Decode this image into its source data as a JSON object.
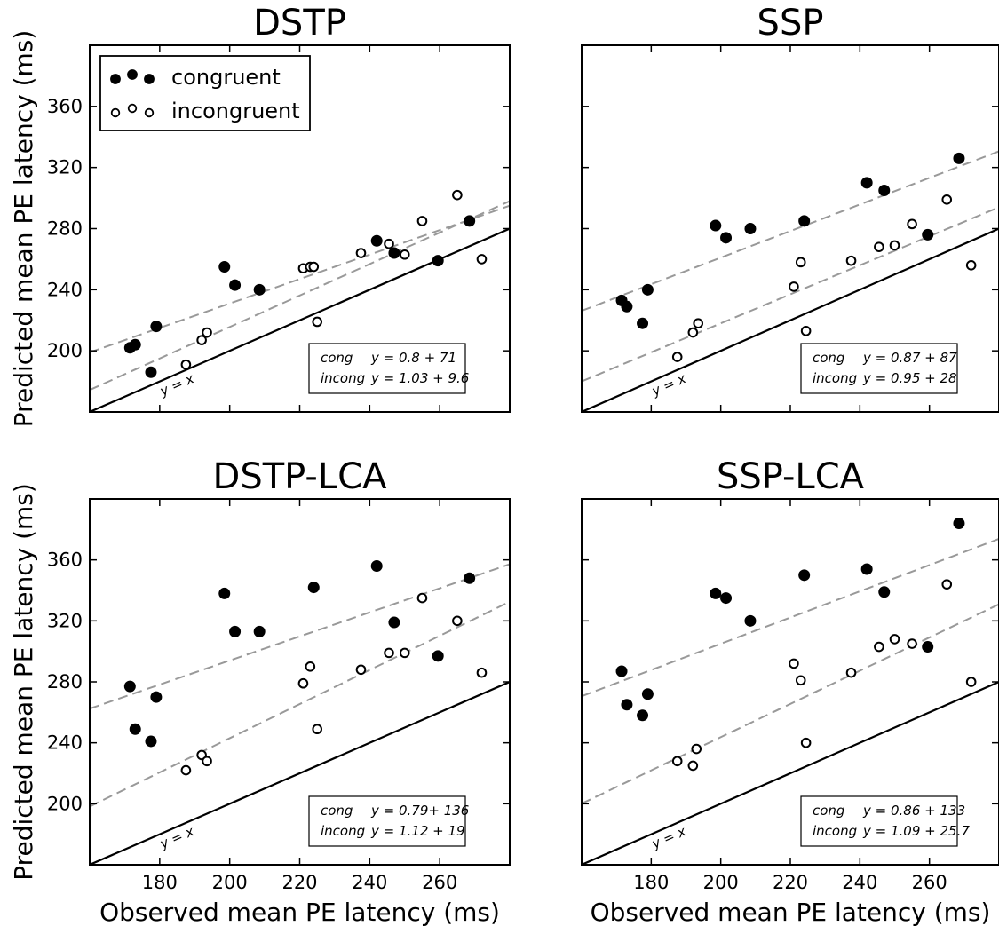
{
  "chart_data": [
    {
      "type": "scatter",
      "title": "DSTP",
      "xlabel": "",
      "ylabel": "Predicted mean PE latency (ms)",
      "xlim": [
        160,
        280
      ],
      "ylim": [
        160,
        400
      ],
      "xticks": [],
      "yticks": [
        200,
        240,
        280,
        320,
        360
      ],
      "identity_label": "y = x",
      "legend": {
        "placement": "top-left",
        "entries": [
          {
            "marker": "filled",
            "label": "congruent"
          },
          {
            "marker": "open",
            "label": "incongruent"
          }
        ]
      },
      "fits": [
        {
          "label": "cong",
          "equation": "y = 0.8 + 71",
          "slope": 0.8,
          "intercept": 71
        },
        {
          "label": "incong",
          "equation": "y = 1.03 + 9.6",
          "slope": 1.03,
          "intercept": 9.6
        }
      ],
      "series": [
        {
          "marker": "filled",
          "points": [
            [
              171.5,
              202
            ],
            [
              173,
              204
            ],
            [
              177.5,
              186
            ],
            [
              179,
              216
            ],
            [
              198.5,
              255
            ],
            [
              201.5,
              243
            ],
            [
              208.5,
              240
            ],
            [
              242,
              272
            ],
            [
              247,
              264
            ],
            [
              259.5,
              259
            ],
            [
              268.5,
              285
            ]
          ]
        },
        {
          "marker": "open",
          "points": [
            [
              187.5,
              191
            ],
            [
              192,
              207
            ],
            [
              193.5,
              212
            ],
            [
              221,
              254
            ],
            [
              223,
              255
            ],
            [
              224,
              255
            ],
            [
              225,
              219
            ],
            [
              237.5,
              264
            ],
            [
              245.5,
              270
            ],
            [
              250,
              263
            ],
            [
              255,
              285
            ],
            [
              265,
              302
            ],
            [
              272,
              260
            ]
          ]
        }
      ]
    },
    {
      "type": "scatter",
      "title": "SSP",
      "xlabel": "",
      "ylabel": "",
      "xlim": [
        160,
        280
      ],
      "ylim": [
        160,
        400
      ],
      "xticks": [],
      "yticks": [],
      "identity_label": "y = x",
      "fits": [
        {
          "label": "cong",
          "equation": "y = 0.87 + 87",
          "slope": 0.87,
          "intercept": 87
        },
        {
          "label": "incong",
          "equation": "y = 0.95 + 28",
          "slope": 0.95,
          "intercept": 28
        }
      ],
      "series": [
        {
          "marker": "filled",
          "points": [
            [
              171.5,
              233
            ],
            [
              173,
              229
            ],
            [
              177.5,
              218
            ],
            [
              179,
              240
            ],
            [
              198.5,
              282
            ],
            [
              201.5,
              274
            ],
            [
              208.5,
              280
            ],
            [
              224,
              285
            ],
            [
              242,
              310
            ],
            [
              247,
              305
            ],
            [
              259.5,
              276
            ],
            [
              268.5,
              326
            ]
          ]
        },
        {
          "marker": "open",
          "points": [
            [
              187.5,
              196
            ],
            [
              192,
              212
            ],
            [
              193.5,
              218
            ],
            [
              221,
              242
            ],
            [
              223,
              258
            ],
            [
              224.5,
              213
            ],
            [
              237.5,
              259
            ],
            [
              245.5,
              268
            ],
            [
              250,
              269
            ],
            [
              255,
              283
            ],
            [
              265,
              299
            ],
            [
              272,
              256
            ]
          ]
        }
      ]
    },
    {
      "type": "scatter",
      "title": "DSTP-LCA",
      "xlabel": "Observed mean PE latency (ms)",
      "ylabel": "Predicted mean PE latency (ms)",
      "xlim": [
        160,
        280
      ],
      "ylim": [
        160,
        400
      ],
      "xticks": [
        180,
        200,
        220,
        240,
        260
      ],
      "yticks": [
        200,
        240,
        280,
        320,
        360
      ],
      "identity_label": "y = x",
      "fits": [
        {
          "label": "cong",
          "equation": "y = 0.79+ 136",
          "slope": 0.79,
          "intercept": 136
        },
        {
          "label": "incong",
          "equation": "y = 1.12 + 19",
          "slope": 1.12,
          "intercept": 19
        }
      ],
      "series": [
        {
          "marker": "filled",
          "points": [
            [
              171.5,
              277
            ],
            [
              173,
              249
            ],
            [
              177.5,
              241
            ],
            [
              179,
              270
            ],
            [
              198.5,
              338
            ],
            [
              201.5,
              313
            ],
            [
              208.5,
              313
            ],
            [
              224,
              342
            ],
            [
              242,
              356
            ],
            [
              247,
              319
            ],
            [
              259.5,
              297
            ],
            [
              268.5,
              348
            ]
          ]
        },
        {
          "marker": "open",
          "points": [
            [
              187.5,
              222
            ],
            [
              192,
              232
            ],
            [
              193.5,
              228
            ],
            [
              221,
              279
            ],
            [
              223,
              290
            ],
            [
              225,
              249
            ],
            [
              237.5,
              288
            ],
            [
              245.5,
              299
            ],
            [
              250,
              299
            ],
            [
              255,
              335
            ],
            [
              265,
              320
            ],
            [
              272,
              286
            ]
          ]
        }
      ]
    },
    {
      "type": "scatter",
      "title": "SSP-LCA",
      "xlabel": "Observed mean PE latency (ms)",
      "ylabel": "",
      "xlim": [
        160,
        280
      ],
      "ylim": [
        160,
        400
      ],
      "xticks": [
        180,
        200,
        220,
        240,
        260
      ],
      "yticks": [],
      "identity_label": "y = x",
      "fits": [
        {
          "label": "cong",
          "equation": "y = 0.86 + 133",
          "slope": 0.86,
          "intercept": 133
        },
        {
          "label": "incong",
          "equation": "y = 1.09 + 25.7",
          "slope": 1.09,
          "intercept": 25.7
        }
      ],
      "series": [
        {
          "marker": "filled",
          "points": [
            [
              171.5,
              287
            ],
            [
              173,
              265
            ],
            [
              177.5,
              258
            ],
            [
              179,
              272
            ],
            [
              198.5,
              338
            ],
            [
              201.5,
              335
            ],
            [
              208.5,
              320
            ],
            [
              224,
              350
            ],
            [
              242,
              354
            ],
            [
              247,
              339
            ],
            [
              259.5,
              303
            ],
            [
              268.5,
              384
            ]
          ]
        },
        {
          "marker": "open",
          "points": [
            [
              187.5,
              228
            ],
            [
              192,
              225
            ],
            [
              193,
              236
            ],
            [
              221,
              292
            ],
            [
              223,
              281
            ],
            [
              224.5,
              240
            ],
            [
              237.5,
              286
            ],
            [
              245.5,
              303
            ],
            [
              250,
              308
            ],
            [
              255,
              305
            ],
            [
              265,
              344
            ],
            [
              272,
              280
            ]
          ]
        }
      ]
    }
  ]
}
